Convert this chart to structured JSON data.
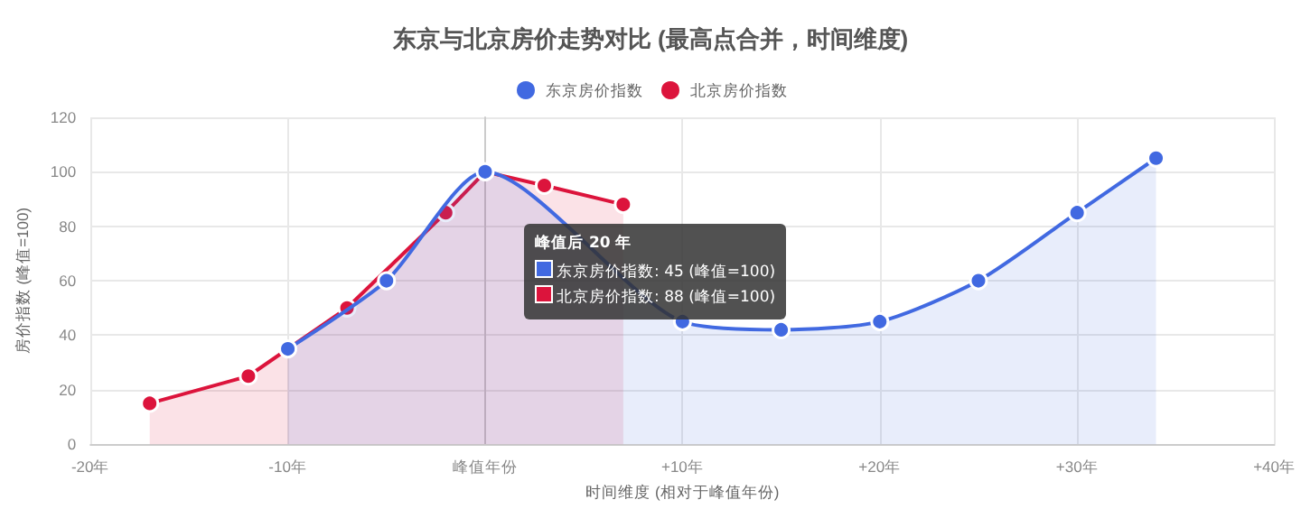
{
  "chart_data": {
    "type": "area",
    "title": "东京与北京房价走势对比 (最高点合并，时间维度)",
    "xlabel": "时间维度 (相对于峰值年份)",
    "ylabel": "房价指数 (峰值=100)",
    "series": [
      {
        "name": "东京房价指数",
        "color": "#4169e1",
        "x": [
          -10,
          -5,
          0,
          10,
          15,
          20,
          25,
          30,
          34
        ],
        "values": [
          35,
          60,
          100,
          45,
          42,
          45,
          60,
          85,
          105
        ]
      },
      {
        "name": "北京房价指数",
        "color": "#dc143c",
        "x": [
          -17,
          -12,
          -7,
          -2,
          0,
          3,
          7
        ],
        "values": [
          15,
          25,
          50,
          85,
          100,
          95,
          88
        ]
      }
    ],
    "xlim": [
      -20,
      40
    ],
    "xticks": [
      {
        "value": -20,
        "label": "-20年"
      },
      {
        "value": -10,
        "label": "-10年"
      },
      {
        "value": 0,
        "label": "峰值年份"
      },
      {
        "value": 10,
        "label": "+10年"
      },
      {
        "value": 20,
        "label": "+20年"
      },
      {
        "value": 30,
        "label": "+30年"
      },
      {
        "value": 40,
        "label": "+40年"
      }
    ],
    "ylim": [
      0,
      120
    ],
    "yticks": [
      0,
      20,
      40,
      60,
      80,
      100,
      120
    ],
    "grid": true,
    "legend": "top",
    "marker": "circle",
    "line_style": "solid",
    "annotations": [
      "峰值后 20 年",
      "东京房价指数: 45 (峰值=100)",
      "北京房价指数: 88 (峰值=100)"
    ]
  }
}
